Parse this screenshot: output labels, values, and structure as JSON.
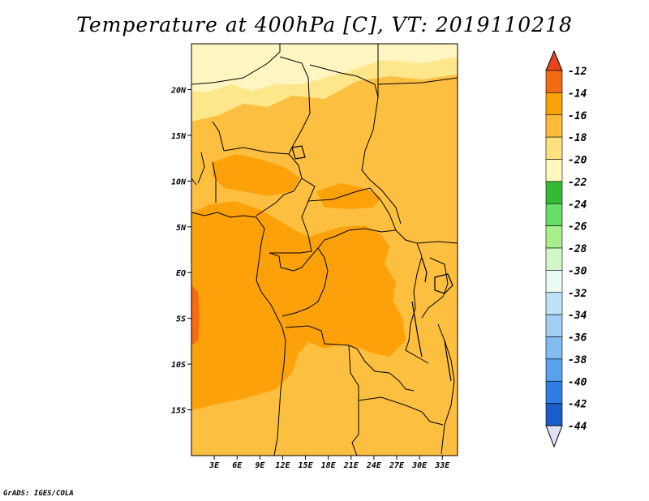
{
  "title": "Temperature at 400hPa [C], VT: 2019110218",
  "credit": "GrADS: IGES/COLA",
  "map": {
    "lon_range": [
      0,
      35
    ],
    "lat_range": [
      -20,
      25
    ],
    "lat_labels": [
      "20N",
      "15N",
      "10N",
      "5N",
      "EQ",
      "5S",
      "10S",
      "15S"
    ],
    "lat_values": [
      20,
      15,
      10,
      5,
      0,
      -5,
      -10,
      -15
    ],
    "lon_labels": [
      "3E",
      "6E",
      "9E",
      "12E",
      "15E",
      "18E",
      "21E",
      "24E",
      "27E",
      "30E",
      "33E"
    ],
    "lon_values": [
      3,
      6,
      9,
      12,
      15,
      18,
      21,
      24,
      27,
      30,
      33
    ],
    "field_colors": {
      "band_22_20": "#fff5c0",
      "band_20_18": "#fee68a",
      "band_18_16": "#fdbf40",
      "band_16_14": "#fca10a",
      "band_14_12": "#f86b10"
    }
  },
  "colorbar": {
    "labels": [
      "-12",
      "-14",
      "-16",
      "-18",
      "-20",
      "-22",
      "-24",
      "-26",
      "-28",
      "-30",
      "-32",
      "-34",
      "-36",
      "-38",
      "-40",
      "-42",
      "-44"
    ],
    "top_triangle_color": "#e8451e",
    "bottom_triangle_color": "#e0e0f8",
    "colors": [
      "#f26b12",
      "#f9a20c",
      "#fdbb3c",
      "#fee07e",
      "#fff8c0",
      "#33bb33",
      "#66dd66",
      "#a6ef8c",
      "#d2f7c8",
      "#ecfaf4",
      "#c0e2f8",
      "#a2d0f4",
      "#80bcf0",
      "#5aa2ec",
      "#2e7ee4",
      "#1a5cc8",
      "#101a7a"
    ]
  }
}
